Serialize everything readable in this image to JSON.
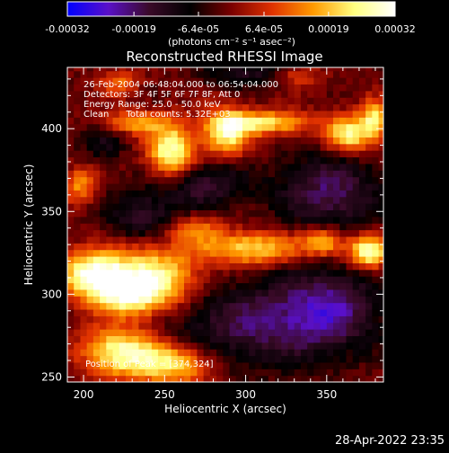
{
  "colorbar": {
    "tick_labels": [
      "-0.00032",
      "-0.00019",
      "-6.4e-05",
      "6.4e-05",
      "0.00019",
      "0.00032"
    ],
    "unit_label": "(photons cm⁻² s⁻¹ asec⁻²)",
    "range": [
      -0.00032,
      0.00032
    ],
    "colors": [
      "#0000ff",
      "#5a10c8",
      "#3a0a28",
      "#000000",
      "#7a0000",
      "#e03200",
      "#ff9a00",
      "#ffff80",
      "#ffffff"
    ]
  },
  "info_lines": [
    "26-Feb-2004 06:48:04.000 to 06:54:04.000",
    "Detectors: 3F 4F 5F 6F 7F 8F, Att 0",
    "Energy Range: 25.0 - 50.0 keV",
    "Clean      Total counts: 5.32E+03"
  ],
  "peak_text": "Position of Peak = [374,324]",
  "timestamp": "28-Apr-2022 23:35",
  "chart_data": {
    "type": "heatmap",
    "title": "Reconstructed RHESSI Image",
    "xlabel": "Heliocentric X (arcsec)",
    "ylabel": "Heliocentric Y (arcsec)",
    "xlim": [
      190,
      385
    ],
    "ylim": [
      247,
      437
    ],
    "xticks": [
      200,
      250,
      300,
      350
    ],
    "yticks": [
      250,
      300,
      350,
      400
    ],
    "grid_step_arcsec": 4,
    "peak": [
      374,
      324
    ],
    "bright_regions": [
      {
        "x": 204,
        "y": 310,
        "amp": 1.0,
        "sx": 14,
        "sy": 10
      },
      {
        "x": 240,
        "y": 308,
        "amp": 0.9,
        "sx": 20,
        "sy": 13
      },
      {
        "x": 226,
        "y": 296,
        "amp": 0.6,
        "sx": 14,
        "sy": 8
      },
      {
        "x": 252,
        "y": 384,
        "amp": 0.95,
        "sx": 10,
        "sy": 12
      },
      {
        "x": 286,
        "y": 396,
        "amp": 0.85,
        "sx": 10,
        "sy": 10
      },
      {
        "x": 312,
        "y": 402,
        "amp": 0.75,
        "sx": 18,
        "sy": 5
      },
      {
        "x": 362,
        "y": 395,
        "amp": 0.85,
        "sx": 10,
        "sy": 8
      },
      {
        "x": 378,
        "y": 404,
        "amp": 0.75,
        "sx": 6,
        "sy": 8
      },
      {
        "x": 228,
        "y": 402,
        "amp": 0.55,
        "sx": 14,
        "sy": 5
      },
      {
        "x": 374,
        "y": 324,
        "amp": 1.0,
        "sx": 9,
        "sy": 7
      },
      {
        "x": 346,
        "y": 330,
        "amp": 0.7,
        "sx": 9,
        "sy": 6
      },
      {
        "x": 302,
        "y": 326,
        "amp": 0.75,
        "sx": 22,
        "sy": 7
      },
      {
        "x": 266,
        "y": 338,
        "amp": 0.5,
        "sx": 12,
        "sy": 6
      },
      {
        "x": 220,
        "y": 264,
        "amp": 0.85,
        "sx": 16,
        "sy": 10
      },
      {
        "x": 252,
        "y": 256,
        "amp": 0.75,
        "sx": 18,
        "sy": 9
      },
      {
        "x": 196,
        "y": 364,
        "amp": 0.5,
        "sx": 7,
        "sy": 8
      },
      {
        "x": 220,
        "y": 426,
        "amp": 0.4,
        "sx": 8,
        "sy": 6
      },
      {
        "x": 330,
        "y": 430,
        "amp": 0.35,
        "sx": 10,
        "sy": 5
      }
    ],
    "negative_regions": [
      {
        "x": 350,
        "y": 360,
        "amp": 0.55,
        "sx": 22,
        "sy": 16
      },
      {
        "x": 300,
        "y": 280,
        "amp": 0.5,
        "sx": 35,
        "sy": 18
      },
      {
        "x": 350,
        "y": 290,
        "amp": 0.55,
        "sx": 22,
        "sy": 18
      },
      {
        "x": 270,
        "y": 365,
        "amp": 0.45,
        "sx": 22,
        "sy": 10
      },
      {
        "x": 235,
        "y": 345,
        "amp": 0.4,
        "sx": 18,
        "sy": 10
      },
      {
        "x": 300,
        "y": 432,
        "amp": 0.35,
        "sx": 20,
        "sy": 6
      },
      {
        "x": 210,
        "y": 390,
        "amp": 0.3,
        "sx": 10,
        "sy": 8
      }
    ]
  }
}
